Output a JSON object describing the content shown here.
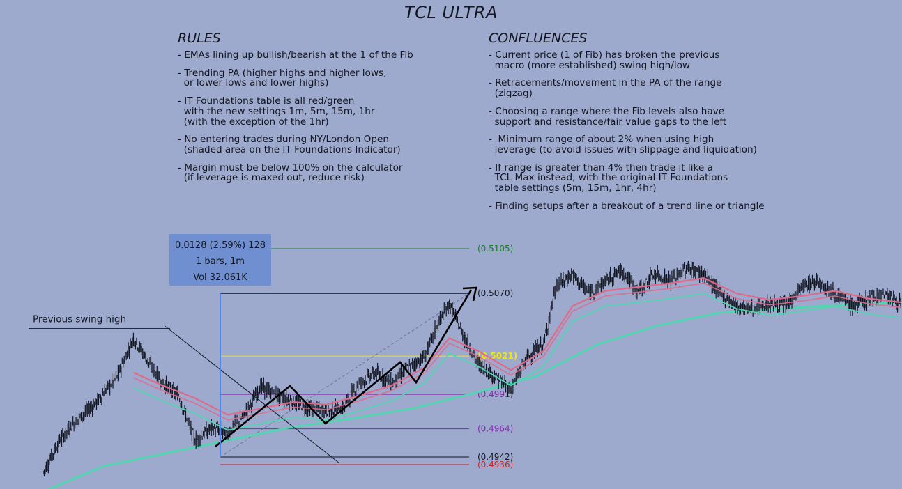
{
  "title": "TCL ULTRA",
  "rules": {
    "heading": "RULES",
    "items": [
      "- EMAs lining up bullish/bearish at the 1 of the Fib",
      "- Trending PA (higher highs and higher lows,\n  or lower lows and lower highs)",
      "- IT Foundations table is all red/green\n  with the new settings 1m, 5m, 15m, 1hr\n  (with the exception of the 1hr)",
      "- No entering trades during NY/London Open\n  (shaded area on the IT Foundations Indicator)",
      "- Margin must be below 100% on the calculator\n  (if leverage is maxed out, reduce risk)"
    ]
  },
  "confluences": {
    "heading": "CONFLUENCES",
    "items": [
      "- Current price (1 of Fib) has broken the previous\n  macro (more established) swing high/low",
      "- Retracements/movement in the PA of the range\n  (zigzag)",
      "- Choosing a range where the Fib levels also have\n  support and resistance/fair value gaps to the left",
      "-  Minimum range of about 2% when using high\n  leverage (to avoid issues with slippage and liquidation)",
      "- If range is greater than 4% then trade it like a\n  TCL Max instead, with the original IT Foundations\n  table settings (5m, 15m, 1hr, 4hr)",
      "- Finding setups after a breakout of a trend line or triangle"
    ]
  },
  "measure": {
    "line1": "0.0128 (2.59%) 128",
    "line2": "1 bars, 1m",
    "line3": "Vol 32.061K"
  },
  "colors": {
    "background": "#9da9cd",
    "ema_fast": "#e06a8a",
    "ema_slow": "#52d6b0",
    "candles": "#131722",
    "measure_box": "#6f8fd0",
    "measure_line": "#4f86f0"
  },
  "chart_data": {
    "type": "line",
    "timeframe": "1m",
    "ylim": [
      0.4925,
      0.5125
    ],
    "annotations": [
      {
        "label": "Previous swing high",
        "price": 0.50425
      }
    ],
    "fib_levels": [
      {
        "label": "(0.5105)",
        "value": 0.5105,
        "color": "#1e7a2f"
      },
      {
        "label": "(0.5070)",
        "value": 0.507,
        "color": "#131722"
      },
      {
        "label": "(0.5021)",
        "value": 0.5021,
        "color": "#f2e600"
      },
      {
        "label": "(0.4991)",
        "value": 0.4991,
        "color": "#7b2fa8"
      },
      {
        "label": "(0.4964)",
        "value": 0.4964,
        "color": "#7b2fa8"
      },
      {
        "label": "(0.4942)",
        "value": 0.4942,
        "color": "#131722"
      },
      {
        "label": "(0.4936)",
        "value": 0.4936,
        "color": "#c62828"
      }
    ],
    "price_path": [
      [
        0,
        0.493
      ],
      [
        8,
        0.4955
      ],
      [
        16,
        0.497
      ],
      [
        26,
        0.4985
      ],
      [
        36,
        0.5005
      ],
      [
        44,
        0.5035
      ],
      [
        50,
        0.502
      ],
      [
        58,
        0.5
      ],
      [
        66,
        0.499
      ],
      [
        74,
        0.4955
      ],
      [
        82,
        0.4965
      ],
      [
        90,
        0.496
      ],
      [
        98,
        0.4975
      ],
      [
        106,
        0.4997
      ],
      [
        114,
        0.499
      ],
      [
        122,
        0.4985
      ],
      [
        130,
        0.498
      ],
      [
        138,
        0.4978
      ],
      [
        146,
        0.498
      ],
      [
        154,
        0.5
      ],
      [
        162,
        0.5008
      ],
      [
        170,
        0.5
      ],
      [
        178,
        0.5012
      ],
      [
        186,
        0.502
      ],
      [
        192,
        0.5045
      ],
      [
        198,
        0.5062
      ],
      [
        204,
        0.504
      ],
      [
        212,
        0.5015
      ],
      [
        220,
        0.5005
      ],
      [
        228,
        0.4995
      ],
      [
        236,
        0.502
      ],
      [
        244,
        0.503
      ],
      [
        250,
        0.5075
      ],
      [
        258,
        0.5085
      ],
      [
        266,
        0.507
      ],
      [
        274,
        0.508
      ],
      [
        282,
        0.5088
      ],
      [
        290,
        0.5072
      ],
      [
        298,
        0.5085
      ],
      [
        306,
        0.508
      ],
      [
        314,
        0.509
      ],
      [
        322,
        0.5085
      ],
      [
        330,
        0.507
      ],
      [
        338,
        0.506
      ],
      [
        346,
        0.5058
      ],
      [
        354,
        0.5062
      ],
      [
        362,
        0.506
      ],
      [
        370,
        0.5075
      ],
      [
        378,
        0.508
      ],
      [
        386,
        0.507
      ],
      [
        394,
        0.506
      ],
      [
        402,
        0.5065
      ],
      [
        410,
        0.507
      ],
      [
        418,
        0.5062
      ]
    ],
    "ema_fast": [
      [
        44,
        0.5008
      ],
      [
        58,
        0.4998
      ],
      [
        74,
        0.4988
      ],
      [
        90,
        0.4975
      ],
      [
        106,
        0.498
      ],
      [
        122,
        0.4985
      ],
      [
        138,
        0.4983
      ],
      [
        154,
        0.499
      ],
      [
        170,
        0.4998
      ],
      [
        186,
        0.5012
      ],
      [
        198,
        0.5035
      ],
      [
        212,
        0.5025
      ],
      [
        228,
        0.501
      ],
      [
        244,
        0.5025
      ],
      [
        258,
        0.506
      ],
      [
        274,
        0.5072
      ],
      [
        290,
        0.5075
      ],
      [
        306,
        0.5078
      ],
      [
        322,
        0.5082
      ],
      [
        338,
        0.507
      ],
      [
        354,
        0.5065
      ],
      [
        370,
        0.5068
      ],
      [
        386,
        0.5072
      ],
      [
        402,
        0.5066
      ],
      [
        418,
        0.5063
      ]
    ],
    "ema_slow": [
      [
        0,
        0.4915
      ],
      [
        30,
        0.4935
      ],
      [
        60,
        0.4945
      ],
      [
        90,
        0.4955
      ],
      [
        120,
        0.4965
      ],
      [
        150,
        0.4972
      ],
      [
        180,
        0.498
      ],
      [
        210,
        0.4992
      ],
      [
        240,
        0.5005
      ],
      [
        270,
        0.503
      ],
      [
        300,
        0.5045
      ],
      [
        330,
        0.5055
      ],
      [
        360,
        0.5058
      ],
      [
        390,
        0.5061
      ],
      [
        418,
        0.5063
      ]
    ]
  }
}
